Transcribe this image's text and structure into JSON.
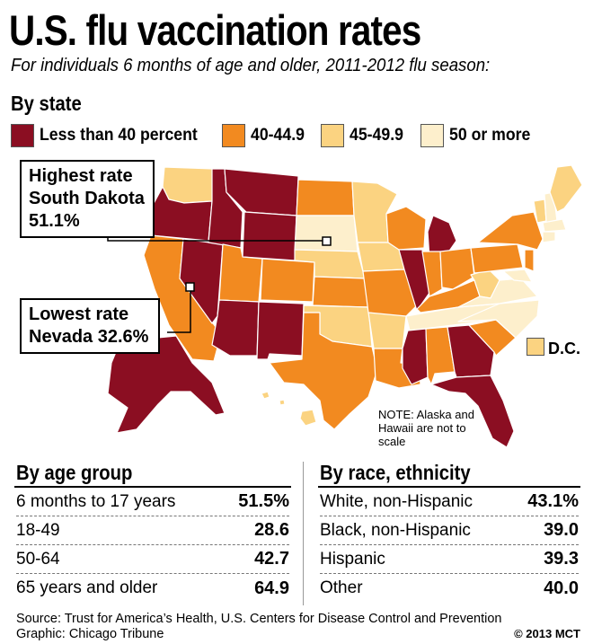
{
  "title": "U.S. flu vaccination rates",
  "subtitle": "For individuals 6 months of age and older, 2011-2012 flu season:",
  "colors": {
    "lt40": "#8b0e22",
    "r40_44": "#f28a20",
    "r45_49": "#fbd381",
    "r50plus": "#fdefcc"
  },
  "chart_data": [
    {
      "type": "map",
      "title": "By state",
      "legend": [
        {
          "label": "Less than 40 percent",
          "color": "#8b0e22"
        },
        {
          "label": "40-44.9",
          "color": "#f28a20"
        },
        {
          "label": "45-49.9",
          "color": "#fbd381"
        },
        {
          "label": "50 or more",
          "color": "#fdefcc"
        }
      ],
      "callouts": [
        {
          "label": "Highest rate",
          "place": "South Dakota",
          "value": "51.1%"
        },
        {
          "label": "Lowest rate",
          "place": "Nevada",
          "value": "32.6%"
        }
      ],
      "dc_label": "D.C.",
      "note": "NOTE: Alaska and Hawaii are not to scale"
    },
    {
      "type": "table",
      "title": "By age group",
      "rows": [
        {
          "label": "6 months to 17 years",
          "value": "51.5%"
        },
        {
          "label": "18-49",
          "value": "28.6"
        },
        {
          "label": "50-64",
          "value": "42.7"
        },
        {
          "label": "65 years and older",
          "value": "64.9"
        }
      ]
    },
    {
      "type": "table",
      "title": "By race, ethnicity",
      "rows": [
        {
          "label": "White, non-Hispanic",
          "value": "43.1%"
        },
        {
          "label": "Black, non-Hispanic",
          "value": "39.0"
        },
        {
          "label": "Hispanic",
          "value": "39.3"
        },
        {
          "label": "Other",
          "value": "40.0"
        }
      ]
    }
  ],
  "source": "Source: Trust for America’s Health, U.S. Centers for Disease Control and Prevention",
  "graphic": "Graphic: Chicago Tribune",
  "credit": "© 2013 MCT"
}
